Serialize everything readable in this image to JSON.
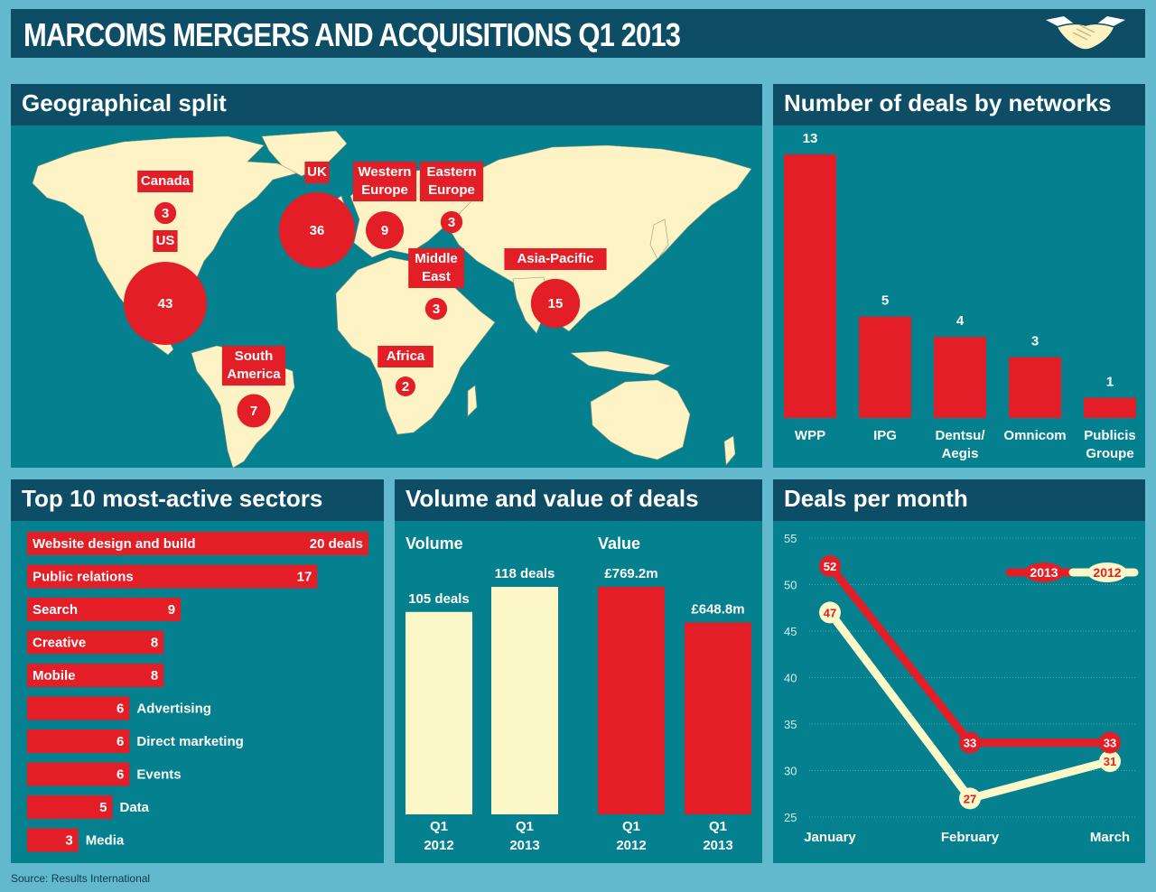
{
  "title": "MARCOMS MERGERS AND ACQUISITIONS Q1 2013",
  "source": "Source: Results International",
  "colors": {
    "dark_navy": "#0d4d66",
    "panel_teal": "#04808f",
    "red": "#e31e26",
    "cream": "#fdf8c8",
    "background": "#62b8cc"
  },
  "geo": {
    "heading": "Geographical split",
    "regions": [
      {
        "name": "Canada",
        "value": "3"
      },
      {
        "name": "US",
        "value": "43"
      },
      {
        "name": "UK",
        "value": "36"
      },
      {
        "name": "Western Europe",
        "value": "9"
      },
      {
        "name": "Eastern Europe",
        "value": "3"
      },
      {
        "name": "Middle East",
        "value": "3"
      },
      {
        "name": "Asia-Pacific",
        "value": "15"
      },
      {
        "name": "Africa",
        "value": "2"
      },
      {
        "name": "South America",
        "value": "7"
      }
    ]
  },
  "networks": {
    "heading": "Number of deals by networks",
    "chart_data": {
      "type": "bar",
      "categories": [
        "WPP",
        "IPG",
        "Dentsu/ Aegis",
        "Omnicom",
        "Publicis Groupe"
      ],
      "values": [
        13,
        5,
        4,
        3,
        1
      ]
    }
  },
  "sectors": {
    "heading": "Top 10 most-active sectors",
    "chart_data": {
      "type": "bar",
      "orientation": "horizontal",
      "categories": [
        "Website design and build",
        "Public relations",
        "Search",
        "Creative",
        "Mobile",
        "Advertising",
        "Direct marketing",
        "Events",
        "Data",
        "Media"
      ],
      "values": [
        20,
        17,
        9,
        8,
        8,
        6,
        6,
        6,
        5,
        3
      ],
      "value_labels": [
        "20 deals",
        "17",
        "9",
        "8",
        "8",
        "6",
        "6",
        "6",
        "5",
        "3"
      ]
    }
  },
  "volume": {
    "heading": "Volume and value of deals",
    "volume_label": "Volume",
    "value_label": "Value",
    "chart_data": [
      {
        "type": "bar",
        "name": "Volume",
        "categories": [
          "Q1 2012",
          "Q1 2013"
        ],
        "values": [
          105,
          118
        ],
        "value_labels": [
          "105 deals",
          "118 deals"
        ]
      },
      {
        "type": "bar",
        "name": "Value",
        "categories": [
          "Q1 2012",
          "Q1 2013"
        ],
        "values": [
          769.2,
          648.8
        ],
        "value_labels": [
          "£769.2m",
          "£648.8m"
        ]
      }
    ],
    "axis_labels": [
      [
        "Q1",
        "2012"
      ],
      [
        "Q1",
        "2013"
      ],
      [
        "Q1",
        "2012"
      ],
      [
        "Q1",
        "2013"
      ]
    ]
  },
  "monthly": {
    "heading": "Deals per month",
    "chart_data": {
      "type": "line",
      "categories": [
        "January",
        "February",
        "March"
      ],
      "ylim": [
        25,
        55
      ],
      "yticks": [
        25,
        30,
        35,
        40,
        45,
        50,
        55
      ],
      "grid": true,
      "legend_position": "top-right",
      "series": [
        {
          "name": "2013",
          "values": [
            52,
            33,
            33
          ],
          "color": "#e31e26"
        },
        {
          "name": "2012",
          "values": [
            47,
            27,
            31
          ],
          "color": "#fdf8c8"
        }
      ]
    }
  }
}
